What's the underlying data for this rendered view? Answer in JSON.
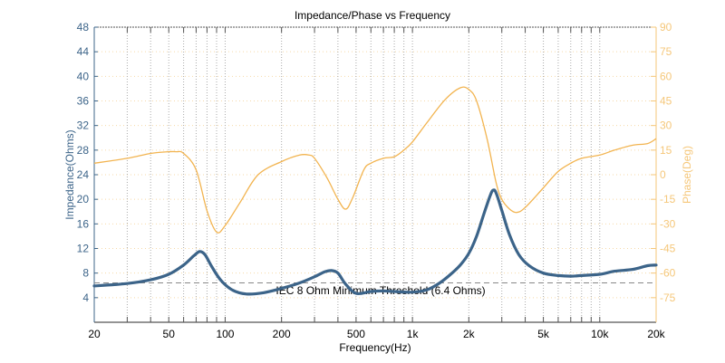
{
  "chart_data": {
    "type": "line",
    "title": "Impedance/Phase vs Frequency",
    "xlabel": "Frequency(Hz)",
    "ylabel_left": "Impedance(Ohms)",
    "ylabel_right": "Phase(Deg)",
    "xscale": "log",
    "xlim": [
      20,
      20000
    ],
    "ylim_left": [
      0,
      48
    ],
    "ylim_right": [
      -90,
      90
    ],
    "grid": true,
    "x_ticks": [
      {
        "value": 20,
        "label": "20"
      },
      {
        "value": 50,
        "label": "50"
      },
      {
        "value": 100,
        "label": "100"
      },
      {
        "value": 200,
        "label": "200"
      },
      {
        "value": 500,
        "label": "500"
      },
      {
        "value": 1000,
        "label": "1k"
      },
      {
        "value": 2000,
        "label": "2k"
      },
      {
        "value": 5000,
        "label": "5k"
      },
      {
        "value": 10000,
        "label": "10k"
      },
      {
        "value": 20000,
        "label": "20k"
      }
    ],
    "x_minor_gridlines": [
      30,
      40,
      60,
      70,
      80,
      90,
      300,
      400,
      600,
      700,
      800,
      900,
      3000,
      4000,
      6000,
      7000,
      8000,
      9000
    ],
    "y_left_ticks": [
      4,
      8,
      12,
      16,
      20,
      24,
      28,
      32,
      36,
      40,
      44,
      48
    ],
    "y_right_ticks": [
      -75,
      -60,
      -45,
      -30,
      -15,
      0,
      15,
      30,
      45,
      60,
      75,
      90
    ],
    "series": [
      {
        "name": "Impedance",
        "axis": "left",
        "color": "#3c6489",
        "x": [
          20,
          30,
          40,
          50,
          60,
          68,
          73,
          78,
          85,
          95,
          110,
          130,
          160,
          200,
          250,
          300,
          340,
          370,
          400,
          440,
          500,
          600,
          700,
          800,
          1000,
          1200,
          1400,
          1600,
          1800,
          2000,
          2200,
          2400,
          2600,
          2700,
          2800,
          3000,
          3300,
          3700,
          4200,
          5000,
          6000,
          7000,
          8000,
          10000,
          12000,
          15000,
          18000,
          20000
        ],
        "y": [
          5.9,
          6.3,
          6.9,
          7.8,
          9.3,
          10.8,
          11.5,
          11.0,
          9.0,
          6.8,
          5.2,
          4.6,
          4.8,
          5.5,
          6.4,
          7.4,
          8.2,
          8.4,
          8.0,
          6.2,
          4.7,
          5.0,
          5.1,
          5.0,
          4.9,
          5.3,
          6.4,
          7.8,
          9.3,
          11.2,
          14.0,
          17.5,
          20.6,
          21.5,
          21.0,
          18.2,
          14.2,
          11.0,
          9.2,
          8.0,
          7.6,
          7.5,
          7.6,
          7.8,
          8.3,
          8.6,
          9.2,
          9.3
        ]
      },
      {
        "name": "Phase",
        "axis": "right",
        "color": "#f2b450",
        "x": [
          20,
          30,
          40,
          50,
          55,
          60,
          70,
          80,
          90,
          100,
          120,
          150,
          200,
          250,
          280,
          300,
          350,
          400,
          440,
          480,
          550,
          600,
          700,
          800,
          900,
          1000,
          1200,
          1500,
          1800,
          2000,
          2200,
          2500,
          2800,
          3000,
          3300,
          3600,
          4000,
          5000,
          6000,
          7000,
          8000,
          10000,
          12000,
          15000,
          18000,
          20000
        ],
        "y": [
          7,
          10,
          13,
          14,
          14,
          13,
          3,
          -22,
          -35,
          -31,
          -17,
          0,
          8,
          12,
          12,
          10,
          -2,
          -15,
          -21,
          -14,
          3,
          7,
          10,
          11,
          15,
          20,
          32,
          46,
          53,
          52,
          45,
          22,
          -5,
          -15,
          -21,
          -23,
          -20,
          -8,
          2,
          7,
          10,
          12,
          15,
          18,
          19,
          22
        ]
      }
    ],
    "reference_line": {
      "axis": "left",
      "value": 6.4,
      "label": "IEC 8 Ohm Minimum Threshold (6.4 Ohms)",
      "style": "dashed",
      "color": "#888888"
    }
  }
}
